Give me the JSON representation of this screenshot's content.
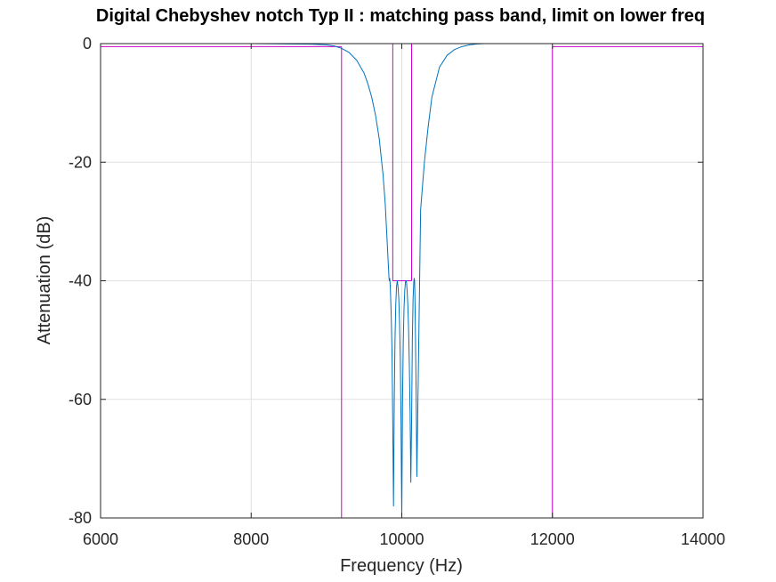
{
  "chart_data": {
    "type": "line",
    "title": "Digital Chebyshev notch Typ II : matching pass band, limit on lower freq",
    "xlabel": "Frequency (Hz)",
    "ylabel": "Attenuation (dB)",
    "xlim": [
      6000,
      14000
    ],
    "ylim": [
      -80,
      0
    ],
    "xticks": [
      6000,
      8000,
      10000,
      12000,
      14000
    ],
    "yticks": [
      -80,
      -60,
      -40,
      -20,
      0
    ],
    "xtick_labels": [
      "6000",
      "8000",
      "10000",
      "12000",
      "14000"
    ],
    "ytick_labels": [
      "-80",
      "-60",
      "-40",
      "-20",
      "0"
    ],
    "grid": true,
    "colors": {
      "response": "#0072bd",
      "mask": "#cc00cc",
      "grid": "#e0e0e0",
      "axis": "#262626"
    },
    "series": [
      {
        "role": "response",
        "x": [
          6000,
          8000,
          8800,
          9000,
          9100,
          9200,
          9300,
          9400,
          9500,
          9550,
          9600,
          9650,
          9700,
          9750,
          9780,
          9800,
          9820,
          9830,
          9835,
          9840,
          9845,
          9850,
          9860,
          9870,
          9880,
          9890,
          9900,
          9910,
          9920,
          9930,
          9940,
          9950,
          9960,
          9970,
          9980,
          9990,
          9995,
          10000,
          10005,
          10010,
          10020,
          10030,
          10040,
          10050,
          10060,
          10070,
          10080,
          10090,
          10100,
          10110,
          10120,
          10130,
          10140,
          10150,
          10160,
          10165,
          10170,
          10175,
          10180,
          10190,
          10200,
          10250,
          10300,
          10350,
          10400,
          10500,
          10600,
          10700,
          10800,
          10900,
          11000,
          11100,
          12000,
          14000
        ],
        "y": [
          0,
          0,
          -0.1,
          -0.2,
          -0.4,
          -0.8,
          -1.5,
          -2.8,
          -5,
          -6.8,
          -9,
          -12,
          -16,
          -22,
          -27,
          -32,
          -37,
          -39.5,
          -40,
          -39.6,
          -40.5,
          -42,
          -46,
          -52,
          -64,
          -78,
          -60,
          -50,
          -44,
          -41,
          -40,
          -41,
          -43,
          -47,
          -53,
          -64,
          -73,
          -80,
          -70,
          -60,
          -50,
          -44.5,
          -41.5,
          -40,
          -40,
          -41.5,
          -44,
          -48,
          -54,
          -62,
          -74,
          -64,
          -50,
          -43,
          -40,
          -39.6,
          -40,
          -43,
          -48,
          -58,
          -73,
          -28,
          -20,
          -14,
          -9,
          -4,
          -2,
          -1,
          -0.5,
          -0.2,
          -0.05,
          0,
          0,
          0
        ]
      }
    ],
    "mask": {
      "passband_level_db": -0.5,
      "stopband_level_db": -40,
      "passband_edges_hz": [
        9200,
        12000
      ],
      "stopband_edges_hz": [
        9880,
        10130
      ]
    }
  }
}
